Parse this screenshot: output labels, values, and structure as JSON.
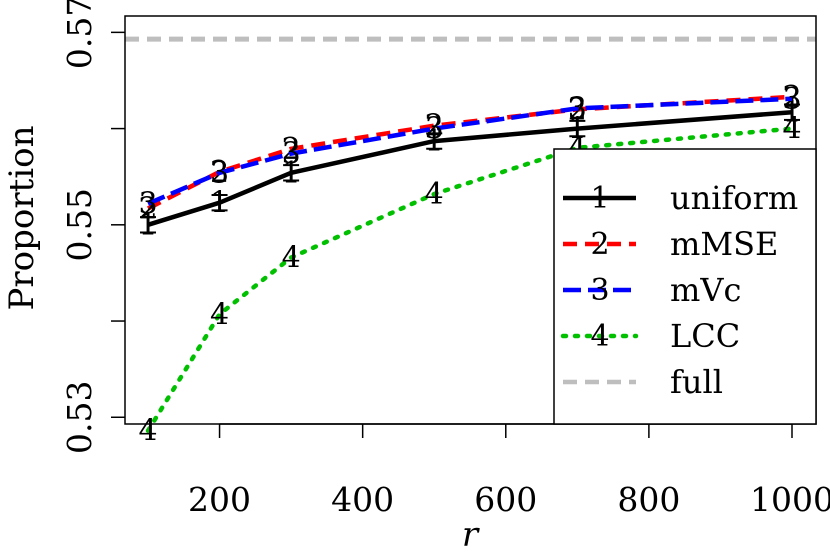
{
  "chart_data": {
    "type": "line",
    "xlabel": "r",
    "ylabel": "Proportion",
    "x": [
      100,
      200,
      300,
      500,
      700,
      1000
    ],
    "xlim": [
      100,
      1000
    ],
    "ylim": [
      0.5293,
      0.5717
    ],
    "xticks": [
      200,
      400,
      600,
      800,
      1000
    ],
    "xtick_labels": [
      "200",
      "400",
      "600",
      "800",
      "1000"
    ],
    "yticks": [
      0.53,
      0.54,
      0.55,
      0.56,
      0.57
    ],
    "ytick_labels": [
      "0.53",
      "",
      "0.55",
      "",
      "0.57"
    ],
    "grid": false,
    "legend_position": "bottom-right",
    "series": [
      {
        "name": "uniform",
        "marker": "1",
        "color": "#000000",
        "dash": "solid",
        "values": [
          0.55,
          0.5523,
          0.5554,
          0.5587,
          0.56,
          0.5617
        ],
        "error": [
          0.0008,
          0.0008,
          0.0008,
          0.0008,
          0.0008,
          0.0008
        ]
      },
      {
        "name": "mMSE",
        "marker": "2",
        "color": "#ff0000",
        "dash": "dash",
        "values": [
          0.5517,
          0.5555,
          0.5579,
          0.5603,
          0.562,
          0.5633
        ],
        "error": [
          0,
          0,
          0,
          0,
          0,
          0
        ]
      },
      {
        "name": "mVc",
        "marker": "3",
        "color": "#0000ff",
        "dash": "longdash",
        "values": [
          0.5522,
          0.5554,
          0.5574,
          0.56,
          0.5621,
          0.5631
        ],
        "error": [
          0,
          0,
          0,
          0,
          0,
          0
        ]
      },
      {
        "name": "LCC",
        "marker": "4",
        "color": "#00c000",
        "dash": "dot",
        "values": [
          0.5286,
          0.5407,
          0.5466,
          0.5532,
          0.558,
          0.56
        ],
        "error": [
          0,
          0,
          0,
          0,
          0,
          0
        ]
      }
    ],
    "hlines": [
      {
        "name": "full",
        "value": 0.5693,
        "color": "#bebebe",
        "dash": "dash"
      }
    ]
  }
}
